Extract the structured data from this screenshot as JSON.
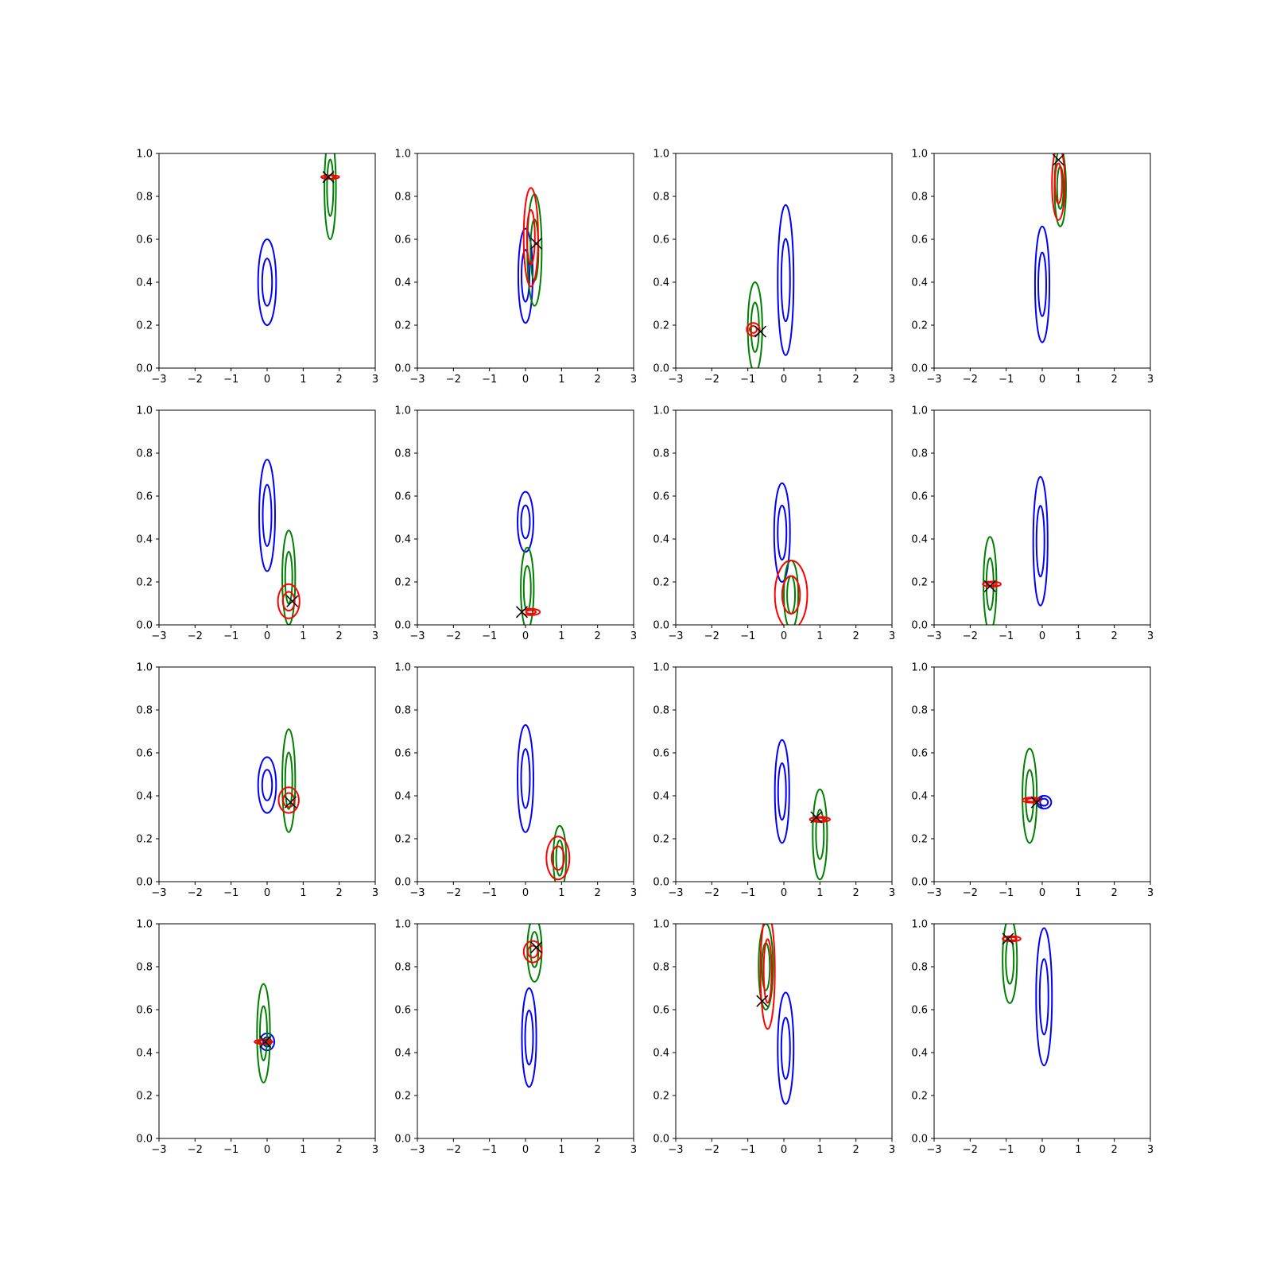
{
  "figure": {
    "rows": 4,
    "cols": 4,
    "colors": {
      "blue": "#0000ff",
      "green": "#008000",
      "red": "#ff0000",
      "marker": "#000000"
    }
  },
  "chart_data": [
    {
      "type": "contour",
      "xlim": [
        -3,
        3
      ],
      "ylim": [
        0,
        1
      ],
      "xticks": [
        -3,
        -2,
        -1,
        0,
        1,
        2,
        3
      ],
      "yticks": [
        "0.0",
        "0.2",
        "0.4",
        "0.6",
        "0.8",
        "1.0"
      ],
      "blue": {
        "cx": 0.0,
        "cy": 0.4,
        "sx": 0.25,
        "sy": 0.2
      },
      "green": {
        "cx": 1.75,
        "cy": 0.84,
        "sx": 0.16,
        "sy": 0.24
      },
      "red": {
        "cx": 1.75,
        "cy": 0.89,
        "sx": 0.25,
        "sy": 0.008
      },
      "marker": {
        "x": 1.7,
        "y": 0.89
      }
    },
    {
      "type": "contour",
      "xlim": [
        -3,
        3
      ],
      "ylim": [
        0,
        1
      ],
      "xticks": [
        -3,
        -2,
        -1,
        0,
        1,
        2,
        3
      ],
      "yticks": [
        "0.0",
        "0.2",
        "0.4",
        "0.6",
        "0.8",
        "1.0"
      ],
      "blue": {
        "cx": 0.0,
        "cy": 0.43,
        "sx": 0.2,
        "sy": 0.22
      },
      "green": {
        "cx": 0.25,
        "cy": 0.55,
        "sx": 0.2,
        "sy": 0.26
      },
      "red": {
        "cx": 0.15,
        "cy": 0.61,
        "sx": 0.2,
        "sy": 0.23
      },
      "marker": {
        "x": 0.3,
        "y": 0.58
      }
    },
    {
      "type": "contour",
      "xlim": [
        -3,
        3
      ],
      "ylim": [
        0,
        1
      ],
      "xticks": [
        -3,
        -2,
        -1,
        0,
        1,
        2,
        3
      ],
      "yticks": [
        "0.0",
        "0.2",
        "0.4",
        "0.6",
        "0.8",
        "1.0"
      ],
      "blue": {
        "cx": 0.05,
        "cy": 0.41,
        "sx": 0.22,
        "sy": 0.35
      },
      "green": {
        "cx": -0.8,
        "cy": 0.19,
        "sx": 0.2,
        "sy": 0.21
      },
      "red": {
        "cx": -0.85,
        "cy": 0.18,
        "sx": 0.18,
        "sy": 0.03
      },
      "marker": {
        "x": -0.65,
        "y": 0.17
      }
    },
    {
      "type": "contour",
      "xlim": [
        -3,
        3
      ],
      "ylim": [
        0,
        1
      ],
      "xticks": [
        -3,
        -2,
        -1,
        0,
        1,
        2,
        3
      ],
      "yticks": [
        "0.0",
        "0.2",
        "0.4",
        "0.6",
        "0.8",
        "1.0"
      ],
      "blue": {
        "cx": 0.0,
        "cy": 0.39,
        "sx": 0.2,
        "sy": 0.27
      },
      "green": {
        "cx": 0.5,
        "cy": 0.84,
        "sx": 0.16,
        "sy": 0.18
      },
      "red": {
        "cx": 0.45,
        "cy": 0.86,
        "sx": 0.18,
        "sy": 0.17
      },
      "marker": {
        "x": 0.45,
        "y": 0.97
      }
    },
    {
      "type": "contour",
      "xlim": [
        -3,
        3
      ],
      "ylim": [
        0,
        1
      ],
      "xticks": [
        -3,
        -2,
        -1,
        0,
        1,
        2,
        3
      ],
      "yticks": [
        "0.0",
        "0.2",
        "0.4",
        "0.6",
        "0.8",
        "1.0"
      ],
      "blue": {
        "cx": 0.0,
        "cy": 0.51,
        "sx": 0.22,
        "sy": 0.26
      },
      "green": {
        "cx": 0.6,
        "cy": 0.22,
        "sx": 0.18,
        "sy": 0.22
      },
      "red": {
        "cx": 0.6,
        "cy": 0.11,
        "sx": 0.3,
        "sy": 0.08
      },
      "marker": {
        "x": 0.7,
        "y": 0.11
      }
    },
    {
      "type": "contour",
      "xlim": [
        -3,
        3
      ],
      "ylim": [
        0,
        1
      ],
      "xticks": [
        -3,
        -2,
        -1,
        0,
        1,
        2,
        3
      ],
      "yticks": [
        "0.0",
        "0.2",
        "0.4",
        "0.6",
        "0.8",
        "1.0"
      ],
      "blue": {
        "cx": 0.0,
        "cy": 0.48,
        "sx": 0.22,
        "sy": 0.14
      },
      "green": {
        "cx": 0.05,
        "cy": 0.17,
        "sx": 0.18,
        "sy": 0.19
      },
      "red": {
        "cx": 0.15,
        "cy": 0.06,
        "sx": 0.25,
        "sy": 0.015
      },
      "marker": {
        "x": -0.1,
        "y": 0.06
      }
    },
    {
      "type": "contour",
      "xlim": [
        -3,
        3
      ],
      "ylim": [
        0,
        1
      ],
      "xticks": [
        -3,
        -2,
        -1,
        0,
        1,
        2,
        3
      ],
      "yticks": [
        "0.0",
        "0.2",
        "0.4",
        "0.6",
        "0.8",
        "1.0"
      ],
      "blue": {
        "cx": -0.05,
        "cy": 0.43,
        "sx": 0.22,
        "sy": 0.23
      },
      "green": {
        "cx": 0.2,
        "cy": 0.14,
        "sx": 0.2,
        "sy": 0.16
      },
      "red": {
        "cx": 0.2,
        "cy": 0.14,
        "sx": 0.45,
        "sy": 0.16
      },
      "marker": null
    },
    {
      "type": "contour",
      "xlim": [
        -3,
        3
      ],
      "ylim": [
        0,
        1
      ],
      "xticks": [
        -3,
        -2,
        -1,
        0,
        1,
        2,
        3
      ],
      "yticks": [
        "0.0",
        "0.2",
        "0.4",
        "0.6",
        "0.8",
        "1.0"
      ],
      "blue": {
        "cx": -0.05,
        "cy": 0.39,
        "sx": 0.2,
        "sy": 0.3
      },
      "green": {
        "cx": -1.45,
        "cy": 0.19,
        "sx": 0.18,
        "sy": 0.22
      },
      "red": {
        "cx": -1.4,
        "cy": 0.19,
        "sx": 0.25,
        "sy": 0.012
      },
      "marker": {
        "x": -1.45,
        "y": 0.18
      }
    },
    {
      "type": "contour",
      "xlim": [
        -3,
        3
      ],
      "ylim": [
        0,
        1
      ],
      "xticks": [
        -3,
        -2,
        -1,
        0,
        1,
        2,
        3
      ],
      "yticks": [
        "0.0",
        "0.2",
        "0.4",
        "0.6",
        "0.8",
        "1.0"
      ],
      "blue": {
        "cx": 0.0,
        "cy": 0.45,
        "sx": 0.25,
        "sy": 0.13
      },
      "green": {
        "cx": 0.6,
        "cy": 0.47,
        "sx": 0.18,
        "sy": 0.24
      },
      "red": {
        "cx": 0.6,
        "cy": 0.38,
        "sx": 0.28,
        "sy": 0.06
      },
      "marker": {
        "x": 0.65,
        "y": 0.37
      }
    },
    {
      "type": "contour",
      "xlim": [
        -3,
        3
      ],
      "ylim": [
        0,
        1
      ],
      "xticks": [
        -3,
        -2,
        -1,
        0,
        1,
        2,
        3
      ],
      "yticks": [
        "0.0",
        "0.2",
        "0.4",
        "0.6",
        "0.8",
        "1.0"
      ],
      "blue": {
        "cx": 0.0,
        "cy": 0.48,
        "sx": 0.22,
        "sy": 0.25
      },
      "green": {
        "cx": 0.95,
        "cy": 0.11,
        "sx": 0.18,
        "sy": 0.15
      },
      "red": {
        "cx": 0.9,
        "cy": 0.11,
        "sx": 0.32,
        "sy": 0.1
      },
      "marker": null
    },
    {
      "type": "contour",
      "xlim": [
        -3,
        3
      ],
      "ylim": [
        0,
        1
      ],
      "xticks": [
        -3,
        -2,
        -1,
        0,
        1,
        2,
        3
      ],
      "yticks": [
        "0.0",
        "0.2",
        "0.4",
        "0.6",
        "0.8",
        "1.0"
      ],
      "blue": {
        "cx": -0.05,
        "cy": 0.42,
        "sx": 0.2,
        "sy": 0.24
      },
      "green": {
        "cx": 1.0,
        "cy": 0.22,
        "sx": 0.2,
        "sy": 0.21
      },
      "red": {
        "cx": 1.0,
        "cy": 0.29,
        "sx": 0.28,
        "sy": 0.012
      },
      "marker": {
        "x": 0.9,
        "y": 0.3
      }
    },
    {
      "type": "contour",
      "xlim": [
        -3,
        3
      ],
      "ylim": [
        0,
        1
      ],
      "xticks": [
        -3,
        -2,
        -1,
        0,
        1,
        2,
        3
      ],
      "yticks": [
        "0.0",
        "0.2",
        "0.4",
        "0.6",
        "0.8",
        "1.0"
      ],
      "blue": {
        "cx": 0.05,
        "cy": 0.37,
        "sx": 0.2,
        "sy": 0.03
      },
      "green": {
        "cx": -0.35,
        "cy": 0.4,
        "sx": 0.2,
        "sy": 0.22
      },
      "red": {
        "cx": -0.3,
        "cy": 0.38,
        "sx": 0.25,
        "sy": 0.012
      },
      "marker": {
        "x": -0.15,
        "y": 0.37
      }
    },
    {
      "type": "contour",
      "xlim": [
        -3,
        3
      ],
      "ylim": [
        0,
        1
      ],
      "xticks": [
        -3,
        -2,
        -1,
        0,
        1,
        2,
        3
      ],
      "yticks": [
        "0.0",
        "0.2",
        "0.4",
        "0.6",
        "0.8",
        "1.0"
      ],
      "blue": {
        "cx": 0.0,
        "cy": 0.45,
        "sx": 0.2,
        "sy": 0.04
      },
      "green": {
        "cx": -0.1,
        "cy": 0.49,
        "sx": 0.18,
        "sy": 0.23
      },
      "red": {
        "cx": -0.1,
        "cy": 0.45,
        "sx": 0.25,
        "sy": 0.01
      },
      "marker": {
        "x": -0.05,
        "y": 0.45
      }
    },
    {
      "type": "contour",
      "xlim": [
        -3,
        3
      ],
      "ylim": [
        0,
        1
      ],
      "xticks": [
        -3,
        -2,
        -1,
        0,
        1,
        2,
        3
      ],
      "yticks": [
        "0.0",
        "0.2",
        "0.4",
        "0.6",
        "0.8",
        "1.0"
      ],
      "blue": {
        "cx": 0.1,
        "cy": 0.47,
        "sx": 0.2,
        "sy": 0.23
      },
      "green": {
        "cx": 0.25,
        "cy": 0.88,
        "sx": 0.2,
        "sy": 0.15
      },
      "red": {
        "cx": 0.2,
        "cy": 0.87,
        "sx": 0.25,
        "sy": 0.05
      },
      "marker": {
        "x": 0.3,
        "y": 0.89
      }
    },
    {
      "type": "contour",
      "xlim": [
        -3,
        3
      ],
      "ylim": [
        0,
        1
      ],
      "xticks": [
        -3,
        -2,
        -1,
        0,
        1,
        2,
        3
      ],
      "yticks": [
        "0.0",
        "0.2",
        "0.4",
        "0.6",
        "0.8",
        "1.0"
      ],
      "blue": {
        "cx": 0.05,
        "cy": 0.42,
        "sx": 0.22,
        "sy": 0.26
      },
      "green": {
        "cx": -0.5,
        "cy": 0.8,
        "sx": 0.2,
        "sy": 0.2
      },
      "red": {
        "cx": -0.45,
        "cy": 0.78,
        "sx": 0.2,
        "sy": 0.27
      },
      "marker": {
        "x": -0.6,
        "y": 0.64
      }
    },
    {
      "type": "contour",
      "xlim": [
        -3,
        3
      ],
      "ylim": [
        0,
        1
      ],
      "xticks": [
        -3,
        -2,
        -1,
        0,
        1,
        2,
        3
      ],
      "yticks": [
        "0.0",
        "0.2",
        "0.4",
        "0.6",
        "0.8",
        "1.0"
      ],
      "blue": {
        "cx": 0.05,
        "cy": 0.66,
        "sx": 0.22,
        "sy": 0.32
      },
      "green": {
        "cx": -0.9,
        "cy": 0.83,
        "sx": 0.2,
        "sy": 0.2
      },
      "red": {
        "cx": -0.85,
        "cy": 0.93,
        "sx": 0.25,
        "sy": 0.012
      },
      "marker": {
        "x": -0.95,
        "y": 0.93
      }
    }
  ]
}
